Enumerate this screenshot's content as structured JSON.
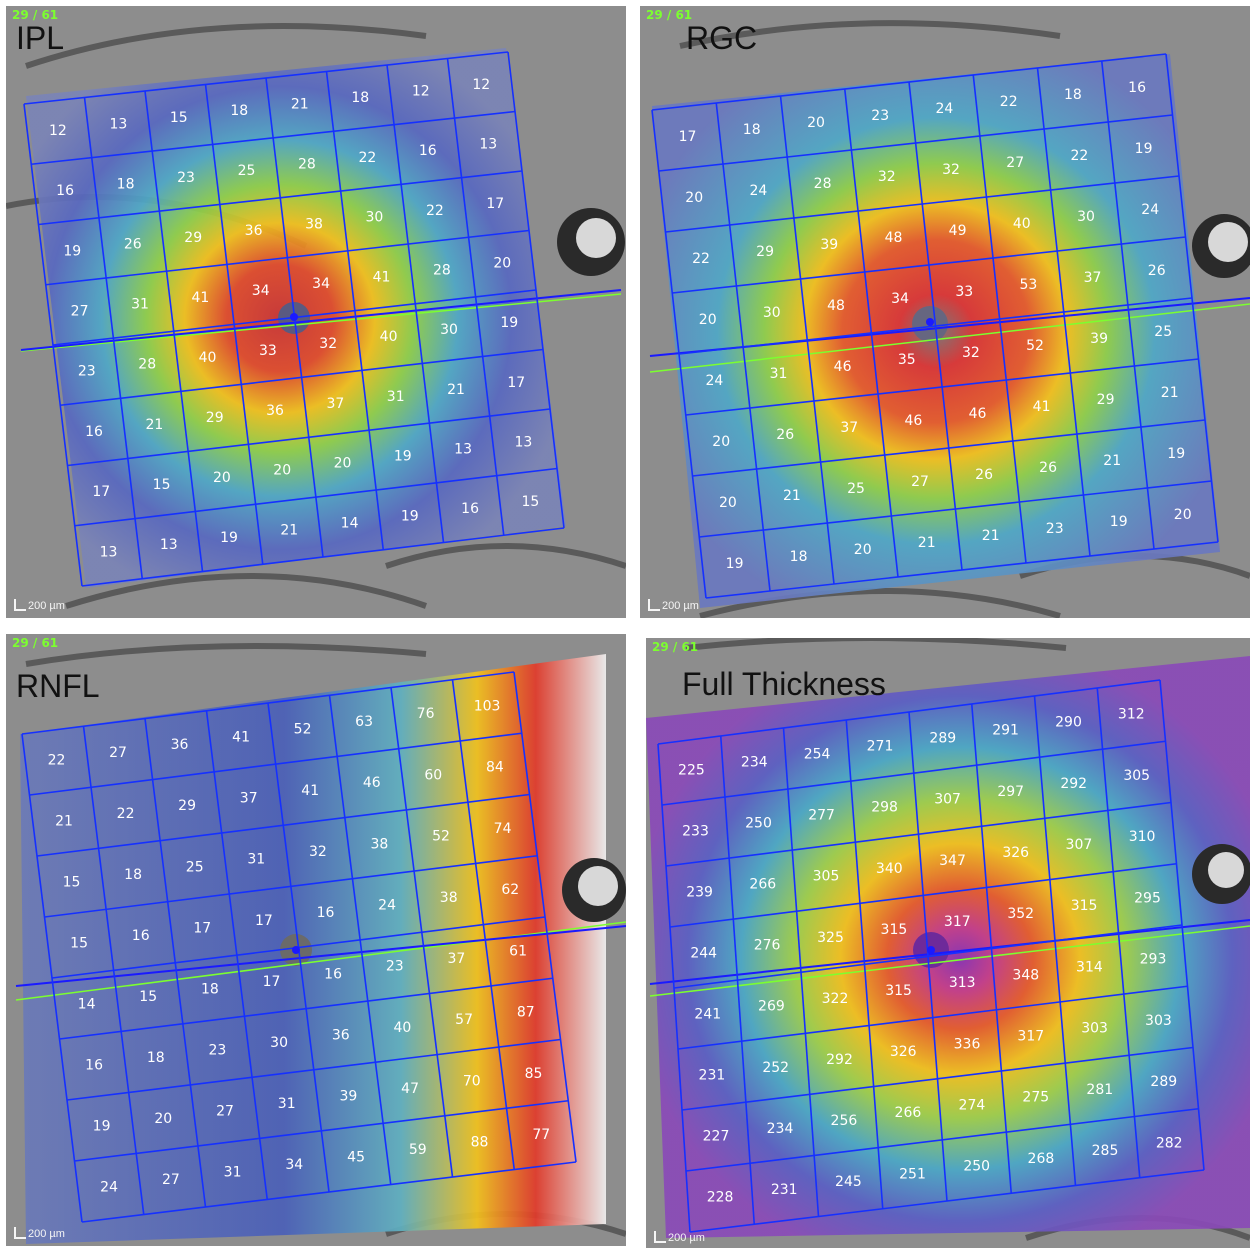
{
  "panels": [
    {
      "counter": "29 / 61",
      "title": "IPL",
      "scale": "200 µm",
      "values": [
        [
          "12",
          "13",
          "15",
          "18",
          "21",
          "18",
          "12",
          "12"
        ],
        [
          "16",
          "18",
          "23",
          "25",
          "28",
          "22",
          "16",
          "13"
        ],
        [
          "19",
          "26",
          "29",
          "36",
          "38",
          "30",
          "22",
          "17"
        ],
        [
          "27",
          "31",
          "41",
          "34",
          "34",
          "41",
          "28",
          "20"
        ],
        [
          "23",
          "28",
          "40",
          "33",
          "32",
          "40",
          "30",
          "19"
        ],
        [
          "16",
          "21",
          "29",
          "36",
          "37",
          "31",
          "21",
          "17"
        ],
        [
          "17",
          "15",
          "20",
          "20",
          "20",
          "19",
          "13",
          "13"
        ],
        [
          "13",
          "13",
          "19",
          "21",
          "14",
          "19",
          "16",
          "15"
        ]
      ]
    },
    {
      "counter": "29 / 61",
      "title": "RGC",
      "scale": "200 µm",
      "values": [
        [
          "17",
          "18",
          "20",
          "23",
          "24",
          "22",
          "18",
          "16"
        ],
        [
          "20",
          "24",
          "28",
          "32",
          "32",
          "27",
          "22",
          "19"
        ],
        [
          "22",
          "29",
          "39",
          "48",
          "49",
          "40",
          "30",
          "24"
        ],
        [
          "20",
          "30",
          "48",
          "34",
          "33",
          "53",
          "37",
          "26"
        ],
        [
          "24",
          "31",
          "46",
          "35",
          "32",
          "52",
          "39",
          "25"
        ],
        [
          "20",
          "26",
          "37",
          "46",
          "46",
          "41",
          "29",
          "21"
        ],
        [
          "20",
          "21",
          "25",
          "27",
          "26",
          "26",
          "21",
          "19"
        ],
        [
          "19",
          "18",
          "20",
          "21",
          "21",
          "23",
          "19",
          "20"
        ]
      ]
    },
    {
      "counter": "29 / 61",
      "title": "RNFL",
      "scale": "200 µm",
      "values": [
        [
          "22",
          "27",
          "36",
          "41",
          "52",
          "63",
          "76",
          "103"
        ],
        [
          "21",
          "22",
          "29",
          "37",
          "41",
          "46",
          "60",
          "84"
        ],
        [
          "15",
          "18",
          "25",
          "31",
          "32",
          "38",
          "52",
          "74"
        ],
        [
          "15",
          "16",
          "17",
          "17",
          "16",
          "24",
          "38",
          "62"
        ],
        [
          "14",
          "15",
          "18",
          "17",
          "16",
          "23",
          "37",
          "61"
        ],
        [
          "16",
          "18",
          "23",
          "30",
          "36",
          "40",
          "57",
          "87"
        ],
        [
          "19",
          "20",
          "27",
          "31",
          "39",
          "47",
          "70",
          "85"
        ],
        [
          "24",
          "27",
          "31",
          "34",
          "45",
          "59",
          "88",
          "77"
        ]
      ]
    },
    {
      "counter": "29 / 61",
      "title": "Full Thickness",
      "scale": "200 µm",
      "values": [
        [
          "225",
          "234",
          "254",
          "271",
          "289",
          "291",
          "290",
          "312"
        ],
        [
          "233",
          "250",
          "277",
          "298",
          "307",
          "297",
          "292",
          "305"
        ],
        [
          "239",
          "266",
          "305",
          "340",
          "347",
          "326",
          "307",
          "310"
        ],
        [
          "244",
          "276",
          "325",
          "315",
          "317",
          "352",
          "315",
          "295"
        ],
        [
          "241",
          "269",
          "322",
          "315",
          "313",
          "348",
          "314",
          "293"
        ],
        [
          "231",
          "252",
          "292",
          "326",
          "336",
          "317",
          "303",
          "303"
        ],
        [
          "227",
          "234",
          "256",
          "266",
          "274",
          "275",
          "281",
          "289"
        ],
        [
          "228",
          "231",
          "245",
          "251",
          "250",
          "268",
          "285",
          "282"
        ]
      ]
    }
  ]
}
